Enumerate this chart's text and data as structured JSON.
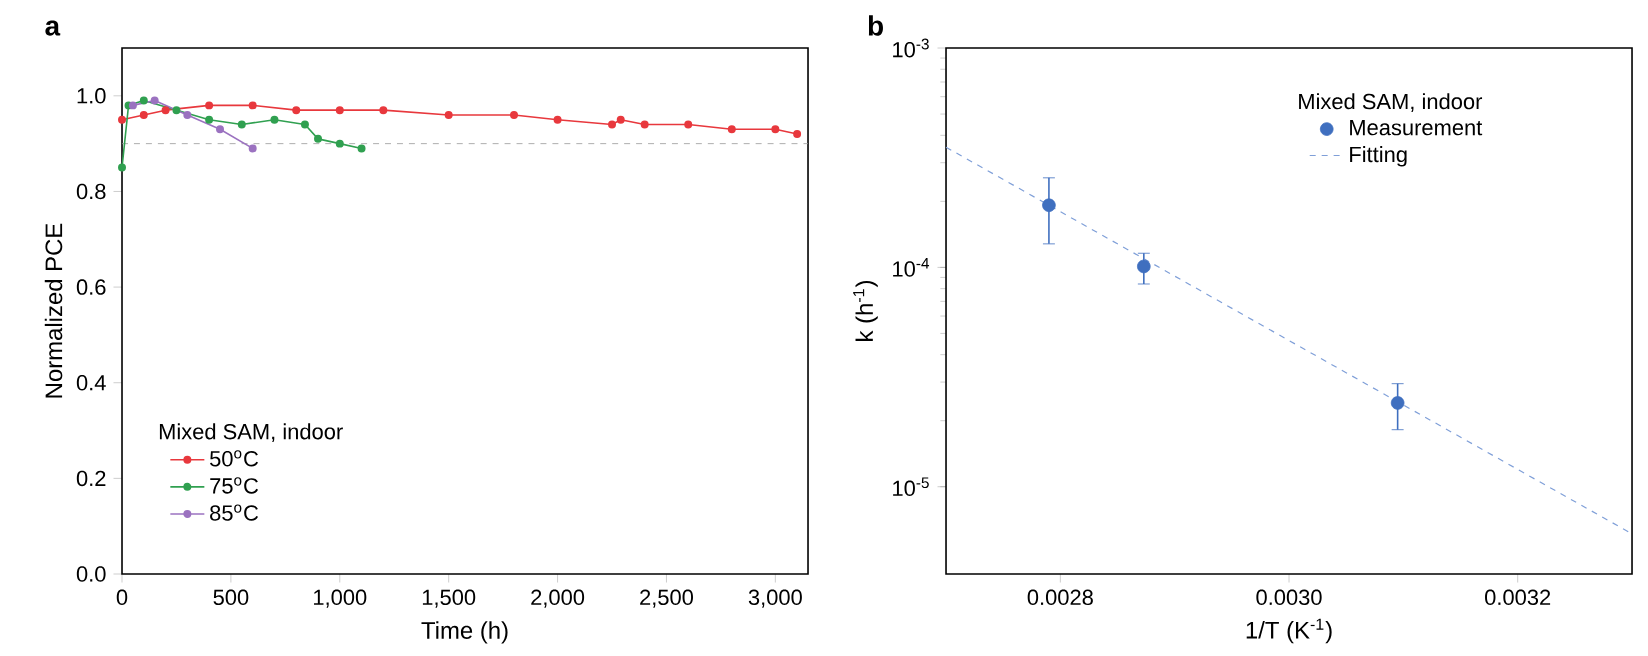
{
  "chart_data": [
    {
      "type": "line",
      "title": "a",
      "xlabel": "Time (h)",
      "ylabel": "Normalized PCE",
      "legend_title": "Mixed SAM, indoor",
      "legend": "bottom left",
      "marker": "circle",
      "xlim": [
        0,
        3150
      ],
      "ylim": [
        0,
        1.1
      ],
      "xticks": [
        0,
        500,
        {
          "value": 1000,
          "label": "1,000"
        },
        {
          "value": 1500,
          "label": "1,500"
        },
        {
          "value": 2000,
          "label": "2,000"
        },
        {
          "value": 2500,
          "label": "2,500"
        },
        {
          "value": 3000,
          "label": "3,000"
        }
      ],
      "yticks": [
        {
          "value": 0,
          "label": "0.0"
        },
        0.2,
        0.4,
        0.6,
        0.8,
        {
          "value": 1,
          "label": "1.0"
        }
      ],
      "ref_lines": [
        {
          "axis": "y",
          "value": 0.9,
          "color": "#999999",
          "line_style": "dashed"
        }
      ],
      "series": [
        {
          "name": "50$^{o}$C",
          "color": "#e8383d",
          "x": [
            0,
            100,
            200,
            400,
            600,
            800,
            1000,
            1200,
            1500,
            1800,
            2000,
            2250,
            2290,
            2400,
            2600,
            2800,
            3000,
            3100
          ],
          "values": [
            0.95,
            0.96,
            0.97,
            0.98,
            0.98,
            0.97,
            0.97,
            0.97,
            0.96,
            0.96,
            0.95,
            0.94,
            0.95,
            0.94,
            0.94,
            0.93,
            0.93,
            0.92
          ]
        },
        {
          "name": "75$^{o}$C",
          "color": "#30a050",
          "x": [
            0,
            30,
            100,
            250,
            400,
            550,
            700,
            840,
            900,
            1000,
            1100
          ],
          "values": [
            0.85,
            0.98,
            0.99,
            0.97,
            0.95,
            0.94,
            0.95,
            0.94,
            0.91,
            0.9,
            0.89
          ]
        },
        {
          "name": "85$^{o}$C",
          "color": "#9b72c0",
          "x": [
            50,
            150,
            300,
            450,
            600
          ],
          "values": [
            0.98,
            0.99,
            0.96,
            0.93,
            0.89
          ]
        }
      ]
    },
    {
      "type": "scatter",
      "title": "b",
      "xlabel": "1/T (K$^{-1}$)",
      "ylabel": "k (h$^{-1}$)",
      "legend_title": "Mixed SAM, indoor",
      "legend": "top right",
      "log": "y",
      "xlim": [
        0.0027,
        0.0033
      ],
      "ylim": [
        4e-06,
        0.001
      ],
      "xticks": [
        0.0028,
        {
          "value": 0.003,
          "label": "0.0030"
        },
        0.0032
      ],
      "yticks": [
        {
          "value": 1e-05,
          "label": "10$^{-5}$"
        },
        {
          "value": 0.0001,
          "label": "10$^{-4}$"
        },
        {
          "value": 0.001,
          "label": "10$^{-3}$"
        }
      ],
      "series": [
        {
          "name": "Measurement",
          "type": "scatter",
          "marker": "circle",
          "color": "#3f6fbf",
          "x": [
            0.00279,
            0.002873,
            0.003095
          ],
          "values": [
            0.000192,
            0.000101,
            2.41e-05
          ],
          "errors": [
            [
              0.000128,
              0.000256
            ],
            [
              8.4e-05,
              0.000116
            ],
            [
              1.82e-05,
              2.95e-05
            ]
          ]
        },
        {
          "name": "Fitting",
          "type": "line",
          "line_style": "dashed",
          "marker": "none",
          "color": "#7f9fd8",
          "x": [
            0.0027,
            0.0033
          ],
          "values": [
            0.000353,
            6.1e-06
          ]
        }
      ]
    }
  ]
}
